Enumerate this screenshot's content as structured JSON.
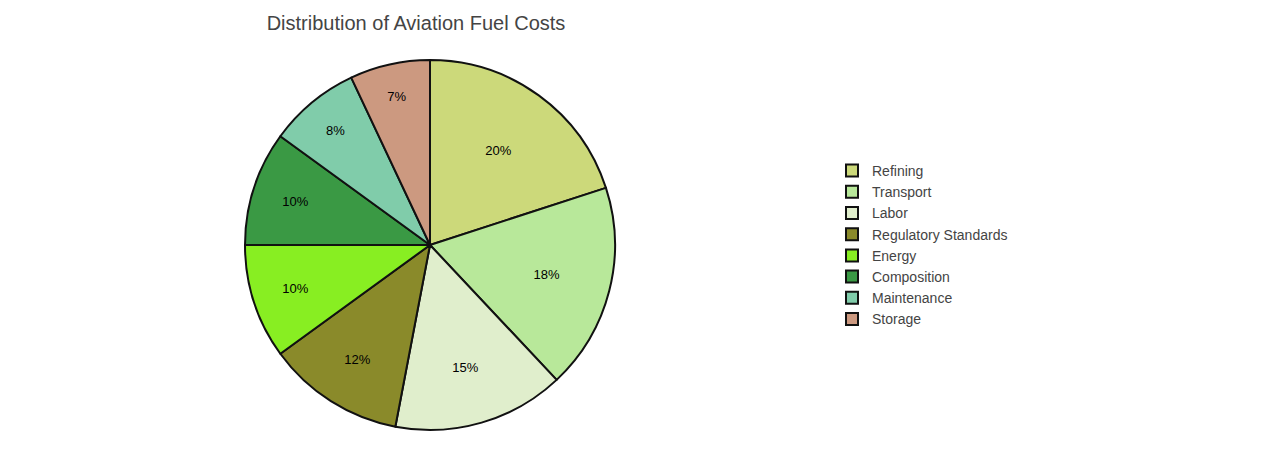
{
  "chart_data": {
    "type": "pie",
    "title": "Distribution of Aviation Fuel Costs",
    "categories": [
      "Refining",
      "Transport",
      "Labor",
      "Regulatory Standards",
      "Energy",
      "Composition",
      "Maintenance",
      "Storage"
    ],
    "values": [
      20,
      18,
      15,
      12,
      10,
      10,
      8,
      7
    ],
    "value_labels": [
      "20%",
      "18%",
      "15%",
      "12%",
      "10%",
      "10%",
      "8%",
      "7%"
    ],
    "colors": [
      "#ccd97a",
      "#b8e89a",
      "#e0eecc",
      "#8a8a2a",
      "#88ee22",
      "#3a9944",
      "#80ccaa",
      "#cc9980"
    ],
    "data_labels": true,
    "legend": "right"
  }
}
